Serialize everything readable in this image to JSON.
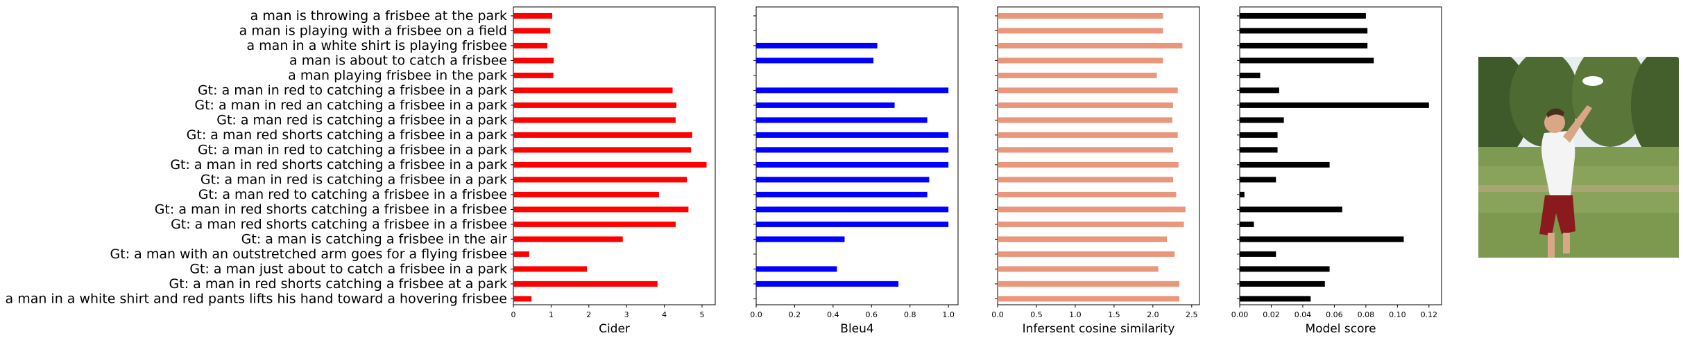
{
  "chart_data": {
    "type": "bar",
    "orientation": "horizontal",
    "categories": [
      "a man is throwing a frisbee at the park",
      "a man is playing with a frisbee on a field",
      "a man in a white shirt is playing frisbee",
      "a man is about to catch a frisbee",
      "a man playing frisbee in the park",
      "Gt: a man in red to catching a frisbee in a park",
      "Gt: a man in red an catching a frisbee in a park",
      "Gt: a man red is catching a frisbee in a park",
      "Gt: a man red shorts catching a frisbee in a park",
      "Gt: a man in red to catching a frisbee in a park",
      "Gt: a man in red shorts catching a frisbee in a park",
      "Gt: a man in red is catching a frisbee in a park",
      "Gt: a man red to catching a frisbee in a frisbee",
      "Gt: a man in red shorts catching a frisbee in a frisbee",
      "Gt: a man red shorts catching a frisbee in a frisbee",
      "Gt: a man is catching a frisbee in the air",
      "Gt: a man with an outstretched arm goes for a flying frisbee",
      "Gt: a man just about to catch a frisbee in a park",
      "Gt: a man in red shorts catching a frisbee at a park",
      "Gt: a man in a white shirt and red pants lifts his hand toward a hovering frisbee"
    ],
    "panels": [
      {
        "xlabel": "Cider",
        "color": "#ff0000",
        "xlim": [
          0,
          5.35
        ],
        "xticks": [
          0,
          1,
          2,
          3,
          4,
          5
        ],
        "tick_labels": [
          "0",
          "1",
          "2",
          "3",
          "4",
          "5"
        ],
        "values": [
          1.03,
          0.98,
          0.9,
          1.07,
          1.06,
          4.22,
          4.32,
          4.3,
          4.74,
          4.71,
          5.12,
          4.6,
          3.86,
          4.64,
          4.3,
          2.9,
          0.42,
          1.95,
          3.82,
          0.48
        ]
      },
      {
        "xlabel": "Bleu4",
        "color": "#0000ff",
        "xlim": [
          0,
          1.05
        ],
        "xticks": [
          0,
          0.2,
          0.4,
          0.6,
          0.8,
          1.0
        ],
        "tick_labels": [
          "0.0",
          "0.2",
          "0.4",
          "0.6",
          "0.8",
          "1.0"
        ],
        "values": [
          0,
          0,
          0.63,
          0.61,
          0,
          1.0,
          0.72,
          0.89,
          1.0,
          1.0,
          1.0,
          0.9,
          0.89,
          1.0,
          1.0,
          0.46,
          0,
          0.42,
          0.74,
          0
        ]
      },
      {
        "xlabel": "Infersent cosine similarity",
        "color": "#e9967a",
        "xlim": [
          0,
          2.6
        ],
        "xticks": [
          0,
          0.5,
          1.0,
          1.5,
          2.0,
          2.5
        ],
        "tick_labels": [
          "0.0",
          "0.5",
          "1.0",
          "1.5",
          "2.0",
          "2.5"
        ],
        "values": [
          2.13,
          2.13,
          2.38,
          2.13,
          2.05,
          2.32,
          2.26,
          2.25,
          2.32,
          2.26,
          2.33,
          2.26,
          2.3,
          2.42,
          2.4,
          2.18,
          2.28,
          2.07,
          2.34,
          2.34
        ]
      },
      {
        "xlabel": "Model score",
        "color": "#000000",
        "xlim": [
          0,
          0.128
        ],
        "xticks": [
          0,
          0.02,
          0.04,
          0.06,
          0.08,
          0.1,
          0.12
        ],
        "tick_labels": [
          "0.00",
          "0.02",
          "0.04",
          "0.06",
          "0.08",
          "0.10",
          "0.12"
        ],
        "values": [
          0.08,
          0.081,
          0.081,
          0.085,
          0.013,
          0.025,
          0.12,
          0.028,
          0.024,
          0.024,
          0.057,
          0.023,
          0.003,
          0.065,
          0.009,
          0.104,
          0.023,
          0.057,
          0.054,
          0.045
        ]
      }
    ]
  },
  "photo": {
    "description_icon": "frisbee-player-photo"
  }
}
